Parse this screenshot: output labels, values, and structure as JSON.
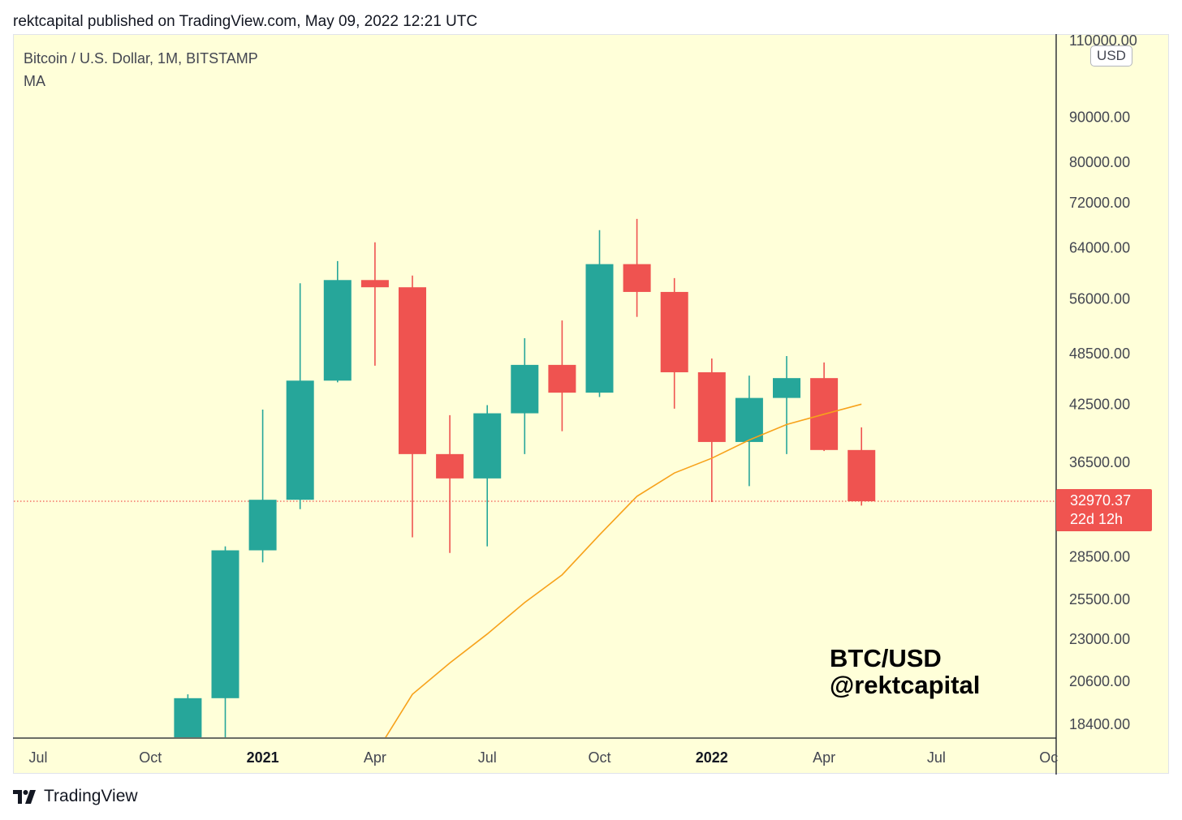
{
  "header": {
    "published_line": "rektcapital published on TradingView.com, May 09, 2022 12:21 UTC"
  },
  "chart_header": {
    "symbol": "Bitcoin / U.S. Dollar, 1M, BITSTAMP",
    "indicator": "MA"
  },
  "watermark": {
    "line1": "BTC/USD",
    "line2": "@rektcapital"
  },
  "currency_badge": "USD",
  "last_price": {
    "value": "32970.37",
    "countdown": "22d 12h",
    "color": "#f05450"
  },
  "footer": {
    "brand": "TradingView"
  },
  "colors": {
    "up": "#26a69a",
    "down": "#ef5350",
    "ma_line": "#f7a21b",
    "background": "#ffffd9"
  },
  "chart_data": {
    "type": "candlestick",
    "title": "Bitcoin / U.S. Dollar, 1M, BITSTAMP",
    "scale": "log",
    "ylim": [
      17500,
      111000
    ],
    "y_ticks": [
      "110000.00",
      "90000.00",
      "80000.00",
      "72000.00",
      "64000.00",
      "56000.00",
      "48500.00",
      "42500.00",
      "36500.00",
      "28500.00",
      "25500.00",
      "23000.00",
      "20600.00",
      "18400.00"
    ],
    "x_ticks": [
      {
        "label": "Jul",
        "date": "2020-07",
        "bold": false
      },
      {
        "label": "Oct",
        "date": "2020-10",
        "bold": false
      },
      {
        "label": "2021",
        "date": "2021-01",
        "bold": true
      },
      {
        "label": "Apr",
        "date": "2021-04",
        "bold": false
      },
      {
        "label": "Jul",
        "date": "2021-07",
        "bold": false
      },
      {
        "label": "Oct",
        "date": "2021-10",
        "bold": false
      },
      {
        "label": "2022",
        "date": "2022-01",
        "bold": true
      },
      {
        "label": "Apr",
        "date": "2022-04",
        "bold": false
      },
      {
        "label": "Jul",
        "date": "2022-07",
        "bold": false
      },
      {
        "label": "Oc",
        "date": "2022-10",
        "bold": false
      }
    ],
    "candles": [
      {
        "date": "2020-11",
        "open": 13800,
        "high": 19900,
        "low": 13200,
        "close": 19700
      },
      {
        "date": "2020-12",
        "open": 19700,
        "high": 29300,
        "low": 17600,
        "close": 29000
      },
      {
        "date": "2021-01",
        "open": 29000,
        "high": 41900,
        "low": 28100,
        "close": 33100
      },
      {
        "date": "2021-02",
        "open": 33100,
        "high": 58300,
        "low": 32300,
        "close": 45200
      },
      {
        "date": "2021-03",
        "open": 45200,
        "high": 61800,
        "low": 45000,
        "close": 58800
      },
      {
        "date": "2021-04",
        "open": 58800,
        "high": 64900,
        "low": 47000,
        "close": 57700
      },
      {
        "date": "2021-05",
        "open": 57700,
        "high": 59500,
        "low": 30000,
        "close": 37300
      },
      {
        "date": "2021-06",
        "open": 37300,
        "high": 41300,
        "low": 28800,
        "close": 35000
      },
      {
        "date": "2021-07",
        "open": 35000,
        "high": 42400,
        "low": 29300,
        "close": 41500
      },
      {
        "date": "2021-08",
        "open": 41500,
        "high": 50500,
        "low": 37300,
        "close": 47100
      },
      {
        "date": "2021-09",
        "open": 47100,
        "high": 52900,
        "low": 39600,
        "close": 43800
      },
      {
        "date": "2021-10",
        "open": 43800,
        "high": 67000,
        "low": 43300,
        "close": 61300
      },
      {
        "date": "2021-11",
        "open": 61300,
        "high": 69000,
        "low": 53400,
        "close": 57000
      },
      {
        "date": "2021-12",
        "open": 57000,
        "high": 59100,
        "low": 42000,
        "close": 46200
      },
      {
        "date": "2022-01",
        "open": 46200,
        "high": 47900,
        "low": 32900,
        "close": 38500
      },
      {
        "date": "2022-02",
        "open": 38500,
        "high": 45800,
        "low": 34300,
        "close": 43200
      },
      {
        "date": "2022-03",
        "open": 43200,
        "high": 48200,
        "low": 37300,
        "close": 45500
      },
      {
        "date": "2022-04",
        "open": 45500,
        "high": 47400,
        "low": 37600,
        "close": 37700
      },
      {
        "date": "2022-05",
        "open": 37700,
        "high": 40000,
        "low": 32600,
        "close": 32970.37
      }
    ],
    "ma": [
      {
        "date": "2021-04",
        "value": 17000
      },
      {
        "date": "2021-05",
        "value": 19900
      },
      {
        "date": "2021-06",
        "value": 21600
      },
      {
        "date": "2021-07",
        "value": 23300
      },
      {
        "date": "2021-08",
        "value": 25300
      },
      {
        "date": "2021-09",
        "value": 27200
      },
      {
        "date": "2021-10",
        "value": 30200
      },
      {
        "date": "2021-11",
        "value": 33400
      },
      {
        "date": "2021-12",
        "value": 35500
      },
      {
        "date": "2022-01",
        "value": 36900
      },
      {
        "date": "2022-02",
        "value": 38700
      },
      {
        "date": "2022-03",
        "value": 40300
      },
      {
        "date": "2022-04",
        "value": 41400
      },
      {
        "date": "2022-05",
        "value": 42500
      }
    ]
  }
}
